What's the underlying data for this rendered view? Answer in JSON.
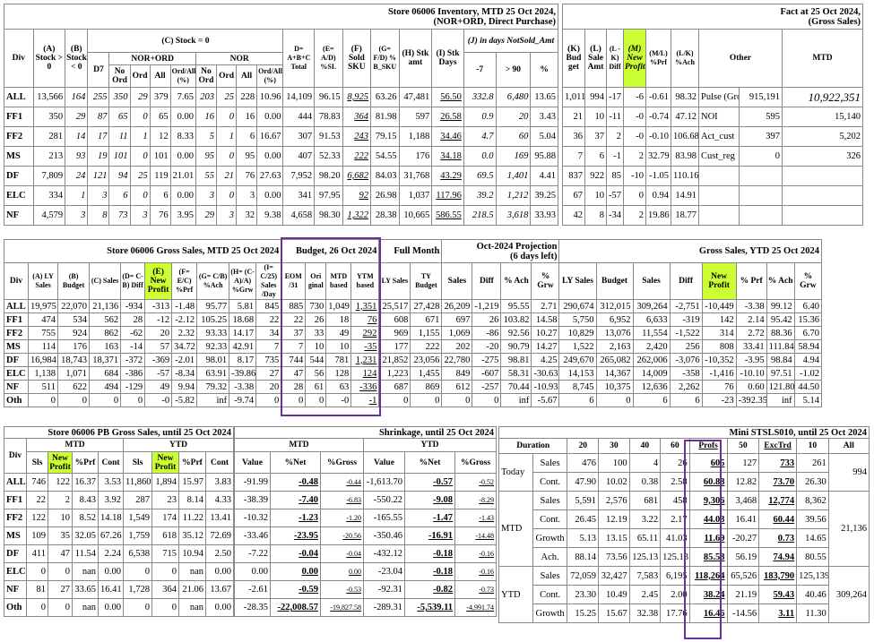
{
  "inv": {
    "title1": "Store 06006 Inventory, MTD 25 Oct 2024,",
    "title2": "(NOR+ORD, Direct Purchase)",
    "h": {
      "div": "Div",
      "a": "(A) Stock > 0",
      "b": "(B) Stock < 0",
      "c": "(C) Stock = 0",
      "d7": "D7",
      "norord": "NOR+ORD",
      "nor": "NOR",
      "noord": "No Ord",
      "ord": "Ord",
      "all": "All",
      "ordall": "Ord/All (%)",
      "d": "D= A+B+C Total",
      "e": "(E= A/D) %SL",
      "f": "(F) Sold SKU",
      "g": "(G= F/D) % B_SKU",
      "h": "(H) Stk amt",
      "i": "(I) Stk Days",
      "j": "(J) in days NotSold_Amt",
      "m7": "-7",
      "gt90": "> 90",
      "pct": "%"
    },
    "rows": [
      {
        "div": "ALL",
        "a": "13,566",
        "b": "164",
        "d7": "255",
        "no1": "350",
        "ord1": "29",
        "all1": "379",
        "pct1": "7.65",
        "no2": "203",
        "ord2": "25",
        "all2": "228",
        "pct2": "10.96",
        "d": "14,109",
        "e": "96.15",
        "f": "8,925",
        "g": "63.26",
        "h": "47,481",
        "i": "56.50",
        "j7": "332.8",
        "j90": "6,480",
        "jp": "13.65"
      },
      {
        "div": "FF1",
        "a": "350",
        "b": "29",
        "d7": "87",
        "no1": "65",
        "ord1": "0",
        "all1": "65",
        "pct1": "0.00",
        "no2": "16",
        "ord2": "0",
        "all2": "16",
        "pct2": "0.00",
        "d": "444",
        "e": "78.83",
        "f": "364",
        "g": "81.98",
        "h": "597",
        "i": "26.58",
        "j7": "0.9",
        "j90": "20",
        "jp": "3.43"
      },
      {
        "div": "FF2",
        "a": "281",
        "b": "14",
        "d7": "17",
        "no1": "11",
        "ord1": "1",
        "all1": "12",
        "pct1": "8.33",
        "no2": "5",
        "ord2": "1",
        "all2": "6",
        "pct2": "16.67",
        "d": "307",
        "e": "91.53",
        "f": "243",
        "g": "79.15",
        "h": "1,188",
        "i": "34.46",
        "j7": "4.7",
        "j90": "60",
        "jp": "5.04"
      },
      {
        "div": "MS",
        "a": "213",
        "b": "93",
        "d7": "19",
        "no1": "101",
        "ord1": "0",
        "all1": "101",
        "pct1": "0.00",
        "no2": "95",
        "ord2": "0",
        "all2": "95",
        "pct2": "0.00",
        "d": "407",
        "e": "52.33",
        "f": "222",
        "g": "54.55",
        "h": "176",
        "i": "34.18",
        "j7": "0.0",
        "j90": "169",
        "jp": "95.88"
      },
      {
        "div": "DF",
        "a": "7,809",
        "b": "24",
        "d7": "121",
        "no1": "94",
        "ord1": "25",
        "all1": "119",
        "pct1": "21.01",
        "no2": "55",
        "ord2": "21",
        "all2": "76",
        "pct2": "27.63",
        "d": "7,952",
        "e": "98.20",
        "f": "6,682",
        "g": "84.03",
        "h": "31,768",
        "i": "43.29",
        "j7": "69.5",
        "j90": "1,401",
        "jp": "4.41"
      },
      {
        "div": "ELC",
        "a": "334",
        "b": "1",
        "d7": "3",
        "no1": "6",
        "ord1": "0",
        "all1": "6",
        "pct1": "0.00",
        "no2": "3",
        "ord2": "0",
        "all2": "3",
        "pct2": "0.00",
        "d": "341",
        "e": "97.95",
        "f": "92",
        "g": "26.98",
        "h": "1,037",
        "i": "117.96",
        "j7": "39.2",
        "j90": "1,212",
        "jp": "39.25"
      },
      {
        "div": "NF",
        "a": "4,579",
        "b": "3",
        "d7": "8",
        "no1": "73",
        "ord1": "3",
        "all1": "76",
        "pct1": "3.95",
        "no2": "29",
        "ord2": "3",
        "all2": "32",
        "pct2": "9.38",
        "d": "4,658",
        "e": "98.30",
        "f": "1,322",
        "g": "28.38",
        "h": "10,665",
        "i": "586.55",
        "j7": "218.5",
        "j90": "3,618",
        "jp": "33.93"
      }
    ]
  },
  "fact": {
    "title1": "Fact at 25 Oct 2024,",
    "title2": "(Gross Sales)",
    "h": {
      "k": "(K) Bud get",
      "l": "(L) Sale Amt",
      "lk": "(L -K) Diff",
      "m": "(M) New Profit",
      "ml": "(M/L) %Prf",
      "lk2": "(L/K) %Ach",
      "other": "Other",
      "mtd": "MTD"
    },
    "rows": [
      {
        "div": "ALL",
        "k": "1,011",
        "l": "994",
        "d": "-17",
        "m": "-6",
        "ml": "-0.61",
        "lk": "98.32"
      },
      {
        "div": "FF1",
        "k": "21",
        "l": "10",
        "d": "-11",
        "m": "-0",
        "ml": "-0.74",
        "lk": "47.12"
      },
      {
        "div": "FF2",
        "k": "36",
        "l": "37",
        "d": "2",
        "m": "-0",
        "ml": "-0.10",
        "lk": "106.68"
      },
      {
        "div": "MS",
        "k": "7",
        "l": "6",
        "d": "-1",
        "m": "2",
        "ml": "32.79",
        "lk": "83.98"
      },
      {
        "div": "DF",
        "k": "837",
        "l": "922",
        "d": "85",
        "m": "-10",
        "ml": "-1.05",
        "lk": "110.16"
      },
      {
        "div": "ELC",
        "k": "67",
        "l": "10",
        "d": "-57",
        "m": "0",
        "ml": "0.94",
        "lk": "14.91"
      },
      {
        "div": "NF",
        "k": "42",
        "l": "8",
        "d": "-34",
        "m": "2",
        "ml": "19.86",
        "lk": "18.77"
      }
    ],
    "other": [
      {
        "n": "Pulse (Gross)",
        "v": "915,191",
        "m": "10,922,351"
      },
      {
        "n": "NOI",
        "v": "595",
        "m": "15,140"
      },
      {
        "n": "Act_cust",
        "v": "397",
        "m": "5,202"
      },
      {
        "n": "Cust_reg",
        "v": "0",
        "m": "326"
      }
    ]
  },
  "gs": {
    "title": "Store 06006 Gross Sales, MTD 25 Oct 2024",
    "budget_title": "Budget, 26 Oct 2024",
    "full_month": "Full Month",
    "proj_title1": "Oct-2024 Projection",
    "proj_title2": "(6 days left)",
    "ytd_title": "Gross Sales, YTD 25 Oct 2024",
    "h": {
      "a": "(A) LY Sales",
      "b": "(B) Budget",
      "c": "(C) Sales",
      "d": "(D= C-B) Diff",
      "e": "(E) New Profit",
      "f": "(F= E/C) %Prf",
      "g": "(G= C/B) %Ach",
      "hh": "(H= (C-A)/A) %Grw",
      "i": "(I= C/25) Sales /Day",
      "eom": "EOM /31",
      "ori": "Ori ginal",
      "mtdb": "MTD based",
      "ytdb": "YTM based",
      "lys": "LY Sales",
      "tyb": "TY Budget",
      "sales": "Sales",
      "diff": "Diff",
      "ach": "% Ach",
      "grw": "% Grw",
      "ly": "LY Sales",
      "bud": "Budget",
      "sal": "Sales",
      "dif": "Diff",
      "np": "New Profit",
      "prf": "% Prf",
      "ach2": "% Ach",
      "grw2": "% Grw"
    },
    "rows": [
      {
        "div": "ALL",
        "a": "19,975",
        "b": "22,070",
        "c": "21,136",
        "d": "-934",
        "e": "-313",
        "f": "-1.48",
        "g": "95.77",
        "hh": "5.81",
        "i": "845",
        "eom": "885",
        "ori": "730",
        "mtd": "1,049",
        "ytd": "1,351",
        "lys": "25,517",
        "tyb": "27,428",
        "ps": "26,209",
        "pd": "-1,219",
        "pa": "95.55",
        "pg": "2.71",
        "yl": "290,674",
        "yb": "312,015",
        "ys": "309,264",
        "yd": "-2,751",
        "yn": "-10,449",
        "yp": "-3.38",
        "ya": "99.12",
        "yg": "6.40"
      },
      {
        "div": "FF1",
        "a": "474",
        "b": "534",
        "c": "562",
        "d": "28",
        "e": "-12",
        "f": "-2.12",
        "g": "105.25",
        "hh": "18.68",
        "i": "22",
        "eom": "22",
        "ori": "26",
        "mtd": "18",
        "ytd": "76",
        "lys": "608",
        "tyb": "671",
        "ps": "697",
        "pd": "26",
        "pa": "103.82",
        "pg": "14.58",
        "yl": "5,750",
        "yb": "6,952",
        "ys": "6,633",
        "yd": "-319",
        "yn": "142",
        "yp": "2.14",
        "ya": "95.42",
        "yg": "15.36"
      },
      {
        "div": "FF2",
        "a": "755",
        "b": "924",
        "c": "862",
        "d": "-62",
        "e": "20",
        "f": "2.32",
        "g": "93.33",
        "hh": "14.17",
        "i": "34",
        "eom": "37",
        "ori": "33",
        "mtd": "49",
        "ytd": "292",
        "lys": "969",
        "tyb": "1,155",
        "ps": "1,069",
        "pd": "-86",
        "pa": "92.56",
        "pg": "10.27",
        "yl": "10,829",
        "yb": "13,076",
        "ys": "11,554",
        "yd": "-1,522",
        "yn": "314",
        "yp": "2.72",
        "ya": "88.36",
        "yg": "6.70"
      },
      {
        "div": "MS",
        "a": "114",
        "b": "176",
        "c": "163",
        "d": "-14",
        "e": "57",
        "f": "34.72",
        "g": "92.33",
        "hh": "42.91",
        "i": "7",
        "eom": "7",
        "ori": "10",
        "mtd": "10",
        "ytd": "-35",
        "lys": "177",
        "tyb": "222",
        "ps": "202",
        "pd": "-20",
        "pa": "90.79",
        "pg": "14.27",
        "yl": "1,522",
        "yb": "2,163",
        "ys": "2,420",
        "yd": "256",
        "yn": "808",
        "yp": "33.41",
        "ya": "111.84",
        "yg": "58.94"
      },
      {
        "div": "DF",
        "a": "16,984",
        "b": "18,743",
        "c": "18,371",
        "d": "-372",
        "e": "-369",
        "f": "-2.01",
        "g": "98.01",
        "hh": "8.17",
        "i": "735",
        "eom": "744",
        "ori": "544",
        "mtd": "781",
        "ytd": "1,231",
        "lys": "21,852",
        "tyb": "23,056",
        "ps": "22,780",
        "pd": "-275",
        "pa": "98.81",
        "pg": "4.25",
        "yl": "249,670",
        "yb": "265,082",
        "ys": "262,006",
        "yd": "-3,076",
        "yn": "-10,352",
        "yp": "-3.95",
        "ya": "98.84",
        "yg": "4.94"
      },
      {
        "div": "ELC",
        "a": "1,138",
        "b": "1,071",
        "c": "684",
        "d": "-386",
        "e": "-57",
        "f": "-8.34",
        "g": "63.91",
        "hh": "-39.86",
        "i": "27",
        "eom": "47",
        "ori": "56",
        "mtd": "128",
        "ytd": "124",
        "lys": "1,223",
        "tyb": "1,455",
        "ps": "849",
        "pd": "-607",
        "pa": "58.31",
        "pg": "-30.63",
        "yl": "14,153",
        "yb": "14,367",
        "ys": "14,009",
        "yd": "-358",
        "yn": "-1,416",
        "yp": "-10.10",
        "ya": "97.51",
        "yg": "-1.02"
      },
      {
        "div": "NF",
        "a": "511",
        "b": "622",
        "c": "494",
        "d": "-129",
        "e": "49",
        "f": "9.94",
        "g": "79.32",
        "hh": "-3.38",
        "i": "20",
        "eom": "28",
        "ori": "61",
        "mtd": "63",
        "ytd": "-336",
        "lys": "687",
        "tyb": "869",
        "ps": "612",
        "pd": "-257",
        "pa": "70.44",
        "pg": "-10.93",
        "yl": "8,745",
        "yb": "10,375",
        "ys": "12,636",
        "yd": "2,262",
        "yn": "76",
        "yp": "0.60",
        "ya": "121.80",
        "yg": "44.50"
      },
      {
        "div": "Oth",
        "a": "0",
        "b": "0",
        "c": "0",
        "d": "0",
        "e": "-0",
        "f": "-5.82",
        "g": "inf",
        "hh": "-9.74",
        "i": "0",
        "eom": "0",
        "ori": "0",
        "mtd": "-0",
        "ytd": "-1",
        "lys": "0",
        "tyb": "0",
        "ps": "0",
        "pd": "0",
        "pa": "inf",
        "pg": "-5.67",
        "yl": "6",
        "yb": "0",
        "ys": "6",
        "yd": "6",
        "yn": "-23",
        "yp": "-392.35",
        "ya": "inf",
        "yg": "5.14"
      }
    ]
  },
  "pb": {
    "title": "Store 06006 PB Gross Sales, until 25 Oct 2024",
    "h": {
      "mtd": "MTD",
      "ytd": "YTD",
      "sls": "Sls",
      "np": "New Profit",
      "prf": "%Prf",
      "cont": "Cont"
    },
    "rows": [
      {
        "div": "ALL",
        "s": "746",
        "n": "122",
        "p": "16.37",
        "c": "3.53",
        "ys": "11,860",
        "yn": "1,894",
        "yp": "15.97",
        "yc": "3.83"
      },
      {
        "div": "FF1",
        "s": "22",
        "n": "2",
        "p": "8.43",
        "c": "3.92",
        "ys": "287",
        "yn": "23",
        "yp": "8.14",
        "yc": "4.33"
      },
      {
        "div": "FF2",
        "s": "122",
        "n": "10",
        "p": "8.52",
        "c": "14.18",
        "ys": "1,549",
        "yn": "174",
        "yp": "11.22",
        "yc": "13.41"
      },
      {
        "div": "MS",
        "s": "109",
        "n": "35",
        "p": "32.05",
        "c": "67.26",
        "ys": "1,759",
        "yn": "618",
        "yp": "35.12",
        "yc": "72.69"
      },
      {
        "div": "DF",
        "s": "411",
        "n": "47",
        "p": "11.54",
        "c": "2.24",
        "ys": "6,538",
        "yn": "715",
        "yp": "10.94",
        "yc": "2.50"
      },
      {
        "div": "ELC",
        "s": "0",
        "n": "0",
        "p": "nan",
        "c": "0.00",
        "ys": "0",
        "yn": "0",
        "yp": "nan",
        "yc": "0.00"
      },
      {
        "div": "NF",
        "s": "81",
        "n": "27",
        "p": "33.65",
        "c": "16.41",
        "ys": "1,728",
        "yn": "364",
        "yp": "21.06",
        "yc": "13.67"
      },
      {
        "div": "Oth",
        "s": "0",
        "n": "0",
        "p": "nan",
        "c": "0.00",
        "ys": "0",
        "yn": "0",
        "yp": "nan",
        "yc": "0.00"
      }
    ]
  },
  "shr": {
    "title": "Shrinkage, until 25 Oct 2024",
    "h": {
      "mtd": "MTD",
      "ytd": "YTD",
      "value": "Value",
      "net": "%Net",
      "gross": "%Gross"
    },
    "rows": [
      {
        "v": "-91.99",
        "n": "-0.48",
        "g": "-0.44",
        "yv": "-1,613.70",
        "yn": "-0.57",
        "yg": "-0.52"
      },
      {
        "v": "-38.39",
        "n": "-7.40",
        "g": "-6.83",
        "yv": "-550.22",
        "yn": "-9.08",
        "yg": "-8.29"
      },
      {
        "v": "-10.32",
        "n": "-1.23",
        "g": "-1.20",
        "yv": "-165.55",
        "yn": "-1.47",
        "yg": "-1.43"
      },
      {
        "v": "-33.46",
        "n": "-23.95",
        "g": "-20.56",
        "yv": "-350.46",
        "yn": "-16.91",
        "yg": "-14.48"
      },
      {
        "v": "-7.22",
        "n": "-0.04",
        "g": "-0.04",
        "yv": "-432.12",
        "yn": "-0.18",
        "yg": "-0.16"
      },
      {
        "v": "0.00",
        "n": "0.00",
        "g": "0.00",
        "yv": "-23.04",
        "yn": "-0.18",
        "yg": "-0.16"
      },
      {
        "v": "-2.61",
        "n": "-0.59",
        "g": "-0.53",
        "yv": "-92.31",
        "yn": "-0.82",
        "yg": "-0.73"
      },
      {
        "v": "-28.35",
        "n": "-22,008.57",
        "g": "-19,827.58",
        "yv": "-289.31",
        "yn": "-5,539.11",
        "yg": "-4,991.74"
      }
    ]
  },
  "mini": {
    "title": "Mini STSLS010, until 25 Oct 2024",
    "h": {
      "dur": "Duration",
      "c20": "20",
      "c30": "30",
      "c40": "40",
      "c60": "60",
      "profs": "Profs",
      "c50": "50",
      "exc": "ExcTrd",
      "c10": "10",
      "all": "All"
    },
    "groups": [
      {
        "name": "Today",
        "all": "994",
        "rows": [
          {
            "m": "Sales",
            "v": [
              "476",
              "100",
              "4",
              "26",
              "605",
              "127",
              "733",
              "261"
            ]
          },
          {
            "m": "Cont.",
            "v": [
              "47.90",
              "10.02",
              "0.38",
              "2.58",
              "60.88",
              "12.82",
              "73.70",
              "26.30"
            ]
          }
        ]
      },
      {
        "name": "MTD",
        "all": "21,136",
        "rows": [
          {
            "m": "Sales",
            "v": [
              "5,591",
              "2,576",
              "681",
              "458",
              "9,306",
              "3,468",
              "12,774",
              "8,362"
            ]
          },
          {
            "m": "Cont.",
            "v": [
              "26.45",
              "12.19",
              "3.22",
              "2.17",
              "44.03",
              "16.41",
              "60.44",
              "39.56"
            ]
          },
          {
            "m": "Growth",
            "v": [
              "5.13",
              "13.15",
              "65.11",
              "41.03",
              "11.69",
              "-20.27",
              "0.73",
              "14.65"
            ]
          },
          {
            "m": "Ach.",
            "v": [
              "88.14",
              "73.56",
              "125.13",
              "125.13",
              "85.58",
              "56.19",
              "74.94",
              "80.55"
            ]
          }
        ]
      },
      {
        "name": "YTD",
        "all": "309,264",
        "rows": [
          {
            "m": "Sales",
            "v": [
              "72,059",
              "32,427",
              "7,583",
              "6,195",
              "118,264",
              "65,526",
              "183,790",
              "125,139"
            ]
          },
          {
            "m": "Cont.",
            "v": [
              "23.30",
              "10.49",
              "2.45",
              "2.00",
              "38.24",
              "21.19",
              "59.43",
              "40.46"
            ]
          },
          {
            "m": "Growth",
            "v": [
              "15.25",
              "15.67",
              "32.38",
              "17.76",
              "16.46",
              "-14.56",
              "3.11",
              "11.30"
            ]
          }
        ]
      }
    ]
  },
  "colors": {
    "highlight": "#ccff33",
    "frame": "#6b2ea0"
  }
}
